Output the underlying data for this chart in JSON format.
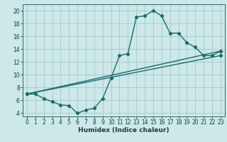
{
  "title": "",
  "xlabel": "Humidex (Indice chaleur)",
  "ylabel": "",
  "bg_color": "#cce8e8",
  "grid_color": "#aacccc",
  "line_color": "#1a6b6b",
  "marker": "D",
  "markersize": 2.2,
  "linewidth": 1.0,
  "xlim": [
    -0.5,
    23.5
  ],
  "ylim": [
    3.5,
    21.0
  ],
  "xticks": [
    0,
    1,
    2,
    3,
    4,
    5,
    6,
    7,
    8,
    9,
    10,
    11,
    12,
    13,
    14,
    15,
    16,
    17,
    18,
    19,
    20,
    21,
    22,
    23
  ],
  "yticks": [
    4,
    6,
    8,
    10,
    12,
    14,
    16,
    18,
    20
  ],
  "series": [
    {
      "x": [
        0,
        1,
        2,
        3,
        4,
        5,
        6,
        7,
        8,
        9,
        10,
        11,
        12,
        13,
        14,
        15,
        16,
        17,
        18,
        19,
        20,
        21,
        22,
        23
      ],
      "y": [
        7.0,
        7.0,
        6.3,
        5.8,
        5.3,
        5.2,
        4.0,
        4.5,
        4.8,
        6.3,
        9.5,
        13.0,
        13.3,
        19.0,
        19.2,
        20.0,
        19.2,
        16.5,
        16.5,
        15.0,
        14.3,
        13.0,
        13.0,
        13.7
      ]
    },
    {
      "x": [
        0,
        23
      ],
      "y": [
        7.0,
        13.7
      ]
    },
    {
      "x": [
        0,
        23
      ],
      "y": [
        7.0,
        13.0
      ]
    }
  ],
  "xlabel_fontsize": 6.5,
  "xlabel_fontweight": "bold",
  "tick_labelsize": 5.5,
  "tick_color": "#1a3a3a",
  "spine_color": "#2a6a6a"
}
